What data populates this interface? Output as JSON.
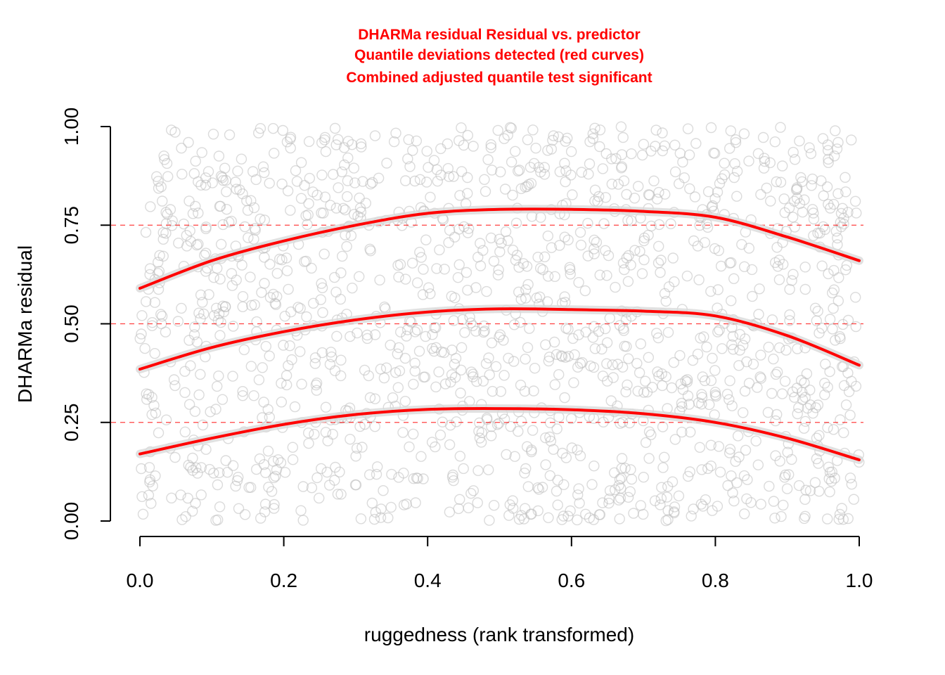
{
  "chart_data": {
    "type": "scatter",
    "title_lines": [
      "DHARMa residual Residual vs. predictor",
      "Quantile deviations detected (red curves)",
      "Combined adjusted quantile test significant"
    ],
    "xlabel": "ruggedness (rank transformed)",
    "ylabel": "DHARMa residual",
    "xlim": [
      0,
      1
    ],
    "ylim": [
      0,
      1
    ],
    "x_ticks": [
      "0.0",
      "0.2",
      "0.4",
      "0.6",
      "0.8",
      "1.0"
    ],
    "y_ticks": [
      "0.00",
      "0.25",
      "0.50",
      "0.75",
      "1.00"
    ],
    "reference_lines": [
      0.25,
      0.5,
      0.75
    ],
    "points": {
      "description": "dense cloud of uniformly distributed scaled residuals, approx. 1500 points, gray open circles",
      "count": 1500,
      "color": "#bebebe"
    },
    "series": [
      {
        "quantile": 0.75,
        "x": [
          0,
          0.1,
          0.2,
          0.3,
          0.4,
          0.5,
          0.6,
          0.7,
          0.8,
          0.9,
          1.0
        ],
        "y": [
          0.59,
          0.66,
          0.71,
          0.75,
          0.78,
          0.79,
          0.79,
          0.785,
          0.77,
          0.72,
          0.66
        ]
      },
      {
        "quantile": 0.5,
        "x": [
          0,
          0.1,
          0.2,
          0.3,
          0.4,
          0.5,
          0.6,
          0.7,
          0.8,
          0.9,
          1.0
        ],
        "y": [
          0.385,
          0.44,
          0.48,
          0.51,
          0.53,
          0.538,
          0.536,
          0.532,
          0.52,
          0.47,
          0.395
        ]
      },
      {
        "quantile": 0.25,
        "x": [
          0,
          0.1,
          0.2,
          0.3,
          0.4,
          0.5,
          0.6,
          0.7,
          0.8,
          0.9,
          1.0
        ],
        "y": [
          0.17,
          0.21,
          0.245,
          0.27,
          0.283,
          0.285,
          0.282,
          0.272,
          0.25,
          0.21,
          0.155
        ]
      }
    ],
    "colors": {
      "curve": "#ff0000",
      "band": "#d9d9d9",
      "reference": "#ff0000",
      "points": "#bebebe",
      "title": "#ff0000"
    }
  }
}
